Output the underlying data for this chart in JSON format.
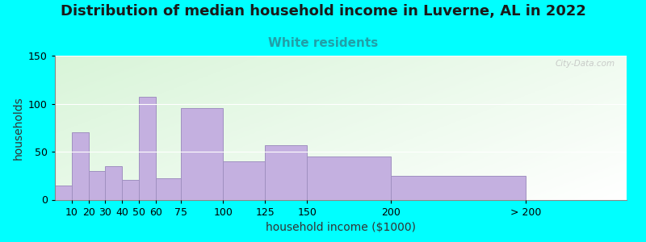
{
  "title": "Distribution of median household income in Luverne, AL in 2022",
  "subtitle": "White residents",
  "xlabel": "household income ($1000)",
  "ylabel": "households",
  "background_outer": "#00FFFF",
  "bar_color": "#C4B0E0",
  "bar_edge_color": "#A090C0",
  "bar_left_edges": [
    0,
    10,
    20,
    30,
    40,
    50,
    60,
    75,
    100,
    125,
    150,
    200
  ],
  "bar_widths": [
    10,
    10,
    10,
    10,
    10,
    10,
    15,
    25,
    25,
    25,
    50,
    80
  ],
  "values": [
    15,
    70,
    30,
    35,
    21,
    107,
    22,
    95,
    40,
    57,
    45,
    25
  ],
  "xtick_positions": [
    10,
    20,
    30,
    40,
    50,
    60,
    75,
    100,
    125,
    150,
    200,
    280
  ],
  "xtick_labels": [
    "10",
    "20",
    "30",
    "40",
    "50",
    "60",
    "75",
    "100",
    "125",
    "150",
    "200",
    "> 200"
  ],
  "xlim": [
    0,
    340
  ],
  "ylim": [
    0,
    150
  ],
  "yticks": [
    0,
    50,
    100,
    150
  ],
  "title_fontsize": 13,
  "subtitle_fontsize": 11,
  "subtitle_color": "#20A0A8",
  "axis_label_fontsize": 10,
  "tick_fontsize": 9,
  "watermark_text": "City-Data.com",
  "watermark_color": "#BBBBBB",
  "grad_topleft": [
    0.85,
    0.96,
    0.85
  ],
  "grad_botright": [
    1.0,
    1.0,
    1.0
  ]
}
